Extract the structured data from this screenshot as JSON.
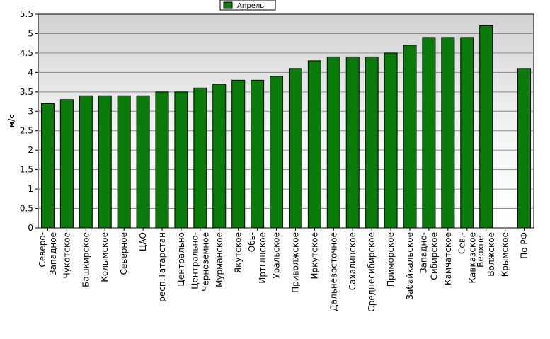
{
  "chart_data": {
    "type": "bar",
    "ylabel": "м/с",
    "ylim": [
      0,
      5.5
    ],
    "yticks": [
      "0",
      "0.5",
      "1",
      "1.5",
      "2",
      "2.5",
      "3",
      "3.5",
      "4",
      "4.5",
      "5",
      "5.5"
    ],
    "grid": true,
    "legend_position": "top-center",
    "series": [
      {
        "name": "Апрель",
        "color": "#0a7a0a",
        "values": [
          3.2,
          3.3,
          3.4,
          3.4,
          3.4,
          3.4,
          3.5,
          3.5,
          3.6,
          3.7,
          3.8,
          3.8,
          3.9,
          4.1,
          4.3,
          4.4,
          4.4,
          4.4,
          4.5,
          4.7,
          4.9,
          4.9,
          4.9,
          5.2,
          null,
          4.1
        ]
      }
    ],
    "categories": [
      [
        "Северо-",
        "Западное"
      ],
      [
        "Чукотское"
      ],
      [
        "Башкирское"
      ],
      [
        "Колымское"
      ],
      [
        "Северное"
      ],
      [
        "ЦАО"
      ],
      [
        "респ.Татарстан"
      ],
      [
        "Центрально"
      ],
      [
        "Центрально-",
        "Черноземное"
      ],
      [
        "Мурманское"
      ],
      [
        "Якутское"
      ],
      [
        "Обь-",
        "Иртышское"
      ],
      [
        "Уральское"
      ],
      [
        "Приволжское"
      ],
      [
        "Иркутское"
      ],
      [
        "Дальневосточное"
      ],
      [
        "Сахалинское"
      ],
      [
        "Среднесибирское"
      ],
      [
        "Приморское"
      ],
      [
        "Забайкальское"
      ],
      [
        "Западно-",
        "Сибирское"
      ],
      [
        "Камчатское"
      ],
      [
        "Сев.-",
        "Кавказское"
      ],
      [
        "Верхне-",
        "Волжское"
      ],
      [
        "Крымское"
      ],
      [
        "По РФ"
      ]
    ]
  }
}
